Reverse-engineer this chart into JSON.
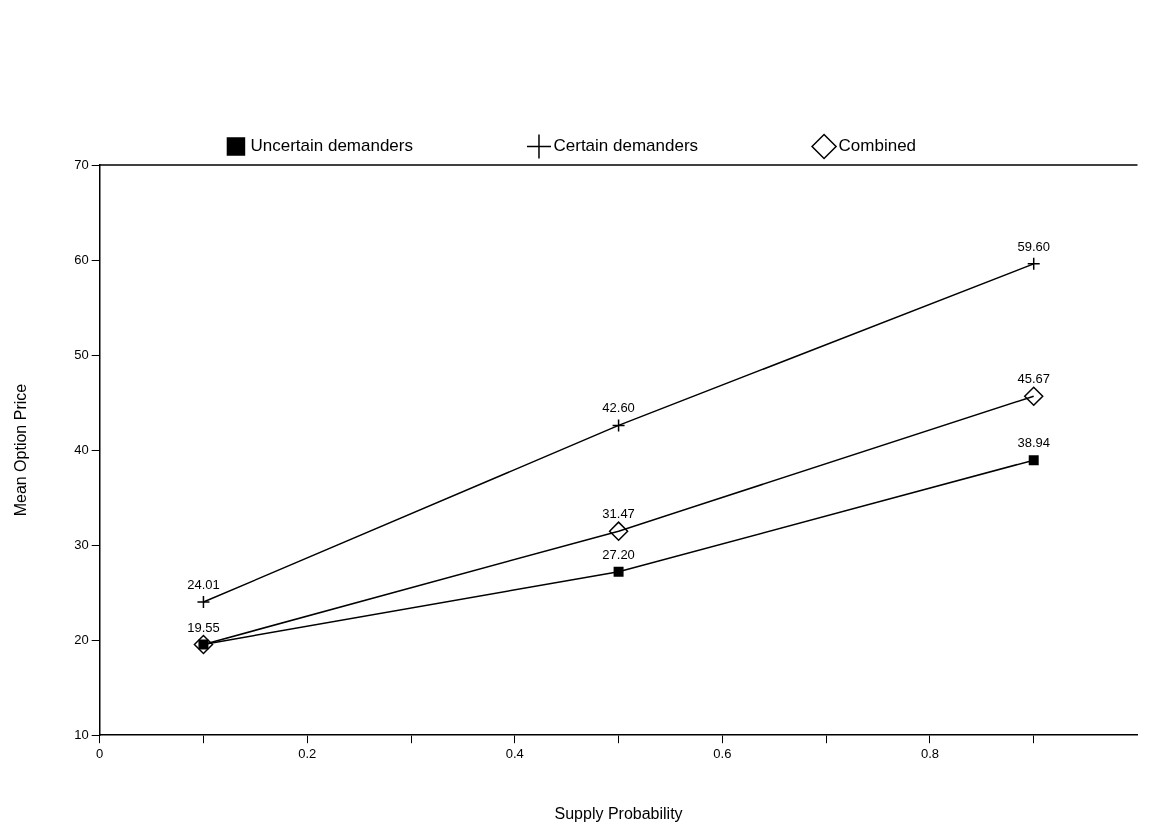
{
  "chart_data": {
    "type": "line",
    "xlabel": "Supply Probability",
    "ylabel": "Mean Option Price",
    "x": [
      0.1,
      0.5,
      0.9
    ],
    "series": [
      {
        "name": "Uncertain demanders",
        "color": "#000000",
        "marker": "square",
        "values": [
          19.55,
          27.2,
          38.94
        ],
        "value_labels": [
          "19.55",
          "27.20",
          "38.94"
        ]
      },
      {
        "name": "Certain demanders",
        "color": "#000000",
        "marker": "cross",
        "values": [
          24.01,
          42.6,
          59.6
        ],
        "value_labels": [
          "24.01",
          "42.60",
          "59.60"
        ]
      },
      {
        "name": "Combined",
        "color": "#000000",
        "marker": "diamond",
        "values": [
          19.55,
          31.47,
          45.67
        ],
        "value_labels": [
          null,
          "31.47",
          "45.67"
        ]
      }
    ],
    "xlim": [
      0,
      1
    ],
    "ylim": [
      10,
      70
    ],
    "xticks": [
      0,
      {
        "value": 0.1,
        "label": null
      },
      0.2,
      {
        "value": 0.3,
        "label": null
      },
      0.4,
      {
        "value": 0.5,
        "label": null
      },
      0.6,
      {
        "value": 0.7,
        "label": null
      },
      0.8,
      {
        "value": 0.9,
        "label": null
      }
    ],
    "yticks": [
      10,
      20,
      30,
      40,
      50,
      60,
      70
    ],
    "grid": false,
    "legend": "top",
    "line_style": "solid"
  }
}
